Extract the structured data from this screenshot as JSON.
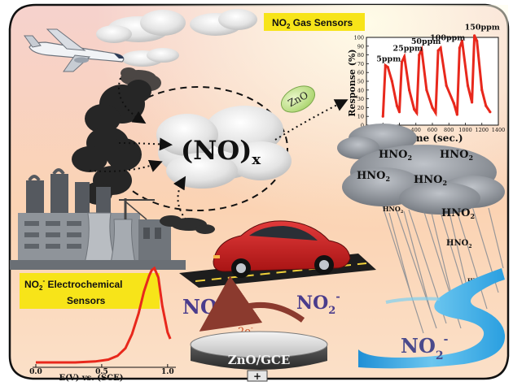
{
  "labels": {
    "gas_sensor_title": "NO",
    "gas_sensor_title_sub": "2",
    "gas_sensor_title_rest": " Gas Sensors",
    "nox_main": "(NO)",
    "nox_sub": "x",
    "zno_ellipse": "ZnO",
    "echem_line1_main": "NO",
    "echem_line1_sub": "2",
    "echem_line1_sup": "-",
    "echem_line1_rest": " Electrochemical",
    "echem_line2": "Sensors",
    "no3_main": "NO",
    "no3_sub": "3",
    "no3_sup": "-",
    "no2_main": "NO",
    "no2_sub": "2",
    "no2_sup": "-",
    "electrons": "2e",
    "electrons_sup": "-",
    "electrode": "ZnO/GCE",
    "electrode_terminal": "+",
    "river_no2_main": "NO",
    "river_no2_sub": "2",
    "river_no2_sup": "-",
    "hno2_main": "HNO",
    "hno2_sub": "2"
  },
  "hno2_labels": [
    {
      "id": "hno2-1",
      "size": "large"
    },
    {
      "id": "hno2-2",
      "size": "large"
    },
    {
      "id": "hno2-3",
      "size": "large"
    },
    {
      "id": "hno2-4",
      "size": "large"
    },
    {
      "id": "hno2-5",
      "size": "small"
    },
    {
      "id": "hno2-6",
      "size": "large"
    },
    {
      "id": "hno2-7",
      "size": "medium"
    },
    {
      "id": "hno2-8",
      "size": "tiny"
    }
  ],
  "chart_data": [
    {
      "type": "line",
      "xlabel": "Time (sec.)",
      "ylabel": "Response (%)",
      "xlim": [
        -200,
        1400
      ],
      "ylim": [
        0,
        100
      ],
      "xticks": [
        -200,
        0,
        200,
        400,
        600,
        800,
        1000,
        1200,
        1400
      ],
      "yticks": [
        0,
        10,
        20,
        30,
        40,
        50,
        60,
        70,
        80,
        90,
        100
      ],
      "annotations": [
        "5ppm",
        "25ppm",
        "50ppm",
        "100ppm",
        "150ppm"
      ],
      "series": [
        {
          "color": "#e8281c",
          "x": [
            0,
            30,
            60,
            110,
            170,
            200,
            230,
            260,
            320,
            380,
            410,
            440,
            470,
            530,
            600,
            640,
            670,
            700,
            770,
            860,
            900,
            930,
            960,
            1030,
            1080,
            1110,
            1140,
            1200,
            1250,
            1300
          ],
          "y": [
            10,
            68,
            66,
            50,
            22,
            15,
            72,
            78,
            40,
            18,
            14,
            80,
            86,
            40,
            20,
            14,
            85,
            88,
            45,
            25,
            12,
            88,
            96,
            45,
            26,
            102,
            96,
            40,
            22,
            15
          ]
        }
      ]
    },
    {
      "type": "line",
      "xlabel": "E(V) vs. (SCE)",
      "ylabel": "",
      "xlim": [
        0.0,
        1.1
      ],
      "xticks": [
        0.0,
        0.5,
        1.0
      ],
      "series": [
        {
          "color": "#e8281c",
          "x": [
            0.0,
            0.3,
            0.45,
            0.55,
            0.62,
            0.68,
            0.73,
            0.78,
            0.82,
            0.86,
            0.88,
            0.9,
            0.93,
            0.96,
            1.0,
            1.02
          ],
          "y": [
            0.0,
            0.0,
            0.01,
            0.03,
            0.07,
            0.15,
            0.3,
            0.52,
            0.75,
            0.92,
            0.98,
            1.0,
            0.9,
            0.6,
            0.32,
            0.25
          ]
        }
      ]
    }
  ]
}
